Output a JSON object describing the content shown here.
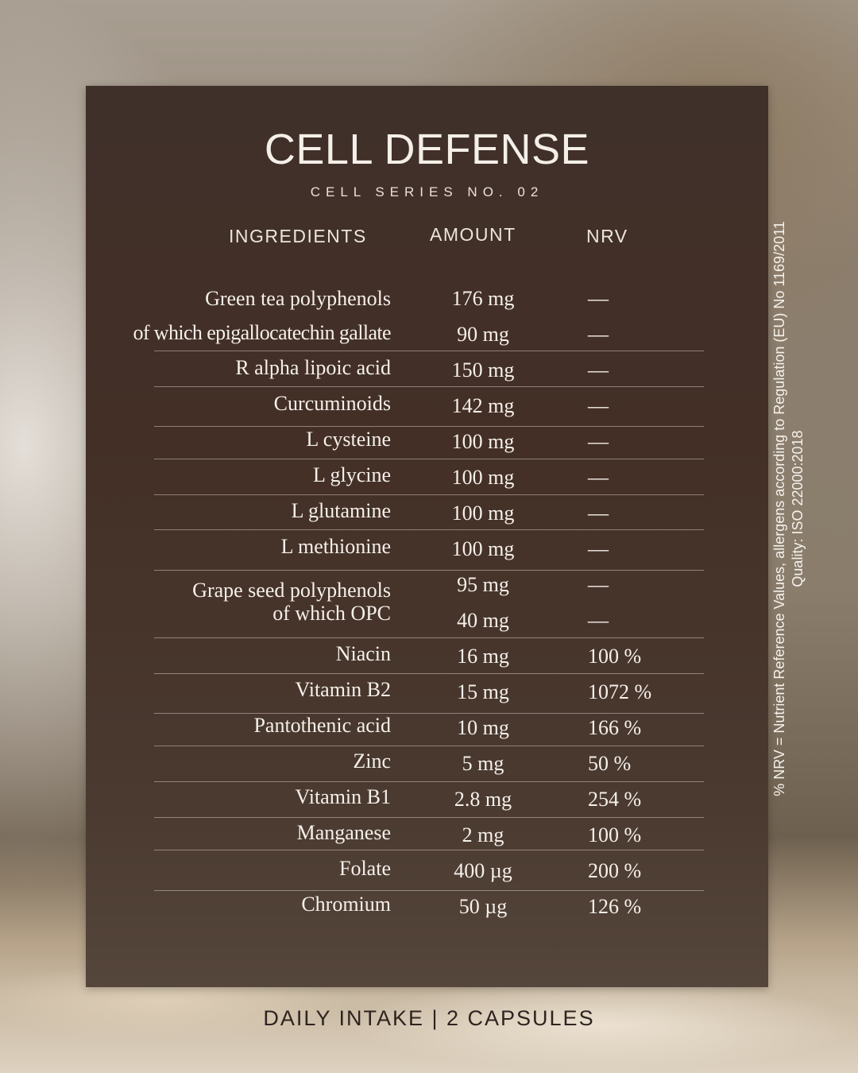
{
  "title": "CELL DEFENSE",
  "subtitle": "CELL SERIES NO. 02",
  "headers": {
    "ingredients": "INGREDIENTS",
    "amount": "AMOUNT",
    "nrv": "NRV"
  },
  "rows": [
    {
      "ingredient": "Green tea polyphenols",
      "amount": "176 mg",
      "nrv": "—"
    },
    {
      "ingredient": "of which epigallocatechin gallate",
      "amount": "90 mg",
      "nrv": "—"
    },
    {
      "ingredient": "R alpha lipoic acid",
      "amount": "150 mg",
      "nrv": "—"
    },
    {
      "ingredient": "Curcuminoids",
      "amount": "142 mg",
      "nrv": "—"
    },
    {
      "ingredient": "L cysteine",
      "amount": "100 mg",
      "nrv": "—"
    },
    {
      "ingredient": "L glycine",
      "amount": "100 mg",
      "nrv": "—"
    },
    {
      "ingredient": "L glutamine",
      "amount": "100 mg",
      "nrv": "—"
    },
    {
      "ingredient": "L methionine",
      "amount": "100 mg",
      "nrv": "—"
    },
    {
      "ingredient": "Grape seed polyphenols",
      "amount": "95 mg",
      "nrv": "—"
    },
    {
      "ingredient": "of which OPC",
      "amount": "40 mg",
      "nrv": "—"
    },
    {
      "ingredient": "Niacin",
      "amount": "16 mg",
      "nrv": "100 %"
    },
    {
      "ingredient": "Vitamin B2",
      "amount": "15 mg",
      "nrv": "1072 %"
    },
    {
      "ingredient": "Pantothenic acid",
      "amount": "10 mg",
      "nrv": "166 %"
    },
    {
      "ingredient": "Zinc",
      "amount": "5 mg",
      "nrv": "50 %"
    },
    {
      "ingredient": "Vitamin B1",
      "amount": "2.8 mg",
      "nrv": "254 %"
    },
    {
      "ingredient": "Manganese",
      "amount": "2 mg",
      "nrv": "100 %"
    },
    {
      "ingredient": "Folate",
      "amount": "400 µg",
      "nrv": "200 %"
    },
    {
      "ingredient": "Chromium",
      "amount": "50 µg",
      "nrv": "126 %"
    }
  ],
  "footer": "DAILY INTAKE | 2 CAPSULES",
  "side_note": {
    "line1": "% NRV = Nutrient Reference Values, allergens according to Regulation (EU) No 1169/2011",
    "line2": "Quality: ISO 22000:2018"
  }
}
